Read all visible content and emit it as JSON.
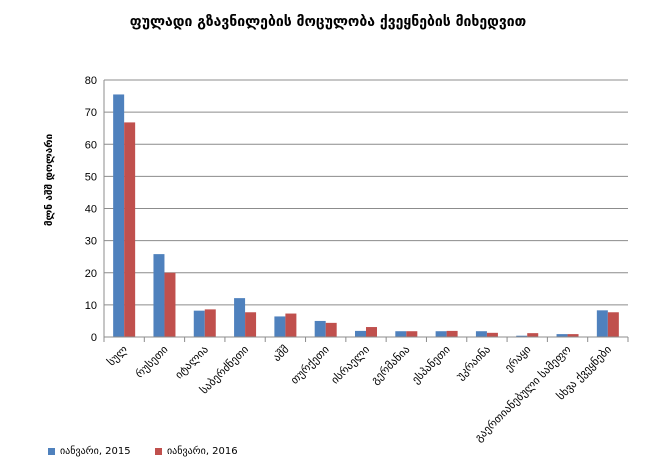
{
  "chart_data": {
    "type": "bar",
    "title": "ფულადი გზავნილების მოცულობა ქვეყნების მიხედვით",
    "ylabel": "მლნ აშშ დოლარი",
    "xlabel": "",
    "ylim": [
      0,
      80
    ],
    "yticks": [
      "0",
      "10",
      "20",
      "30",
      "40",
      "50",
      "60",
      "70",
      "80"
    ],
    "grid": true,
    "legend_position": "bottom-left",
    "categories": [
      "სულ",
      "რუსეთი",
      "იტალია",
      "საბერძნეთი",
      "აშშ",
      "თურქეთი",
      "ისრაელი",
      "გერმანია",
      "ესპანეთი",
      "უკრაინა",
      "ერაყი",
      "გაერთიანებული სამეფო",
      "სხვა ქვეყნები"
    ],
    "series": [
      {
        "name": "იანვარი, 2015",
        "color": "#4f81bd",
        "values": [
          75.5,
          25.8,
          8.2,
          12.1,
          6.4,
          5.0,
          1.9,
          1.8,
          1.8,
          1.8,
          0.4,
          0.9,
          8.3
        ]
      },
      {
        "name": "იანვარი, 2016",
        "color": "#c0504d",
        "values": [
          66.8,
          20.0,
          8.6,
          7.7,
          7.3,
          4.4,
          3.1,
          1.8,
          1.9,
          1.3,
          1.2,
          0.9,
          7.7
        ]
      }
    ]
  }
}
